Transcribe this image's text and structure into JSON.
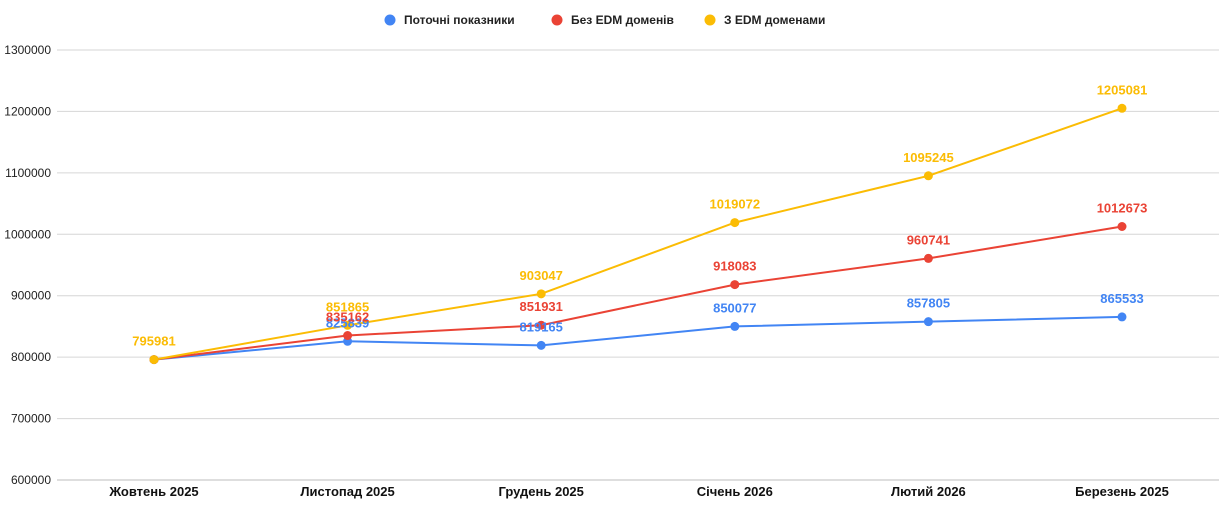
{
  "chart_data": {
    "type": "line",
    "categories": [
      "Жовтень 2025",
      "Листопад 2025",
      "Грудень 2025",
      "Січень 2026",
      "Лютий 2026",
      "Березень 2025"
    ],
    "series": [
      {
        "name": "Поточні показники",
        "color": "#4285F4",
        "values": [
          795981,
          825839,
          819165,
          850077,
          857805,
          865533
        ],
        "labels": [
          "",
          "825839",
          "819165",
          "850077",
          "857805",
          "865533"
        ]
      },
      {
        "name": "Без EDM доменів",
        "color": "#EA4335",
        "values": [
          795981,
          835162,
          851931,
          918083,
          960741,
          1012673
        ],
        "labels": [
          "",
          "835162",
          "851931",
          "918083",
          "960741",
          "1012673"
        ]
      },
      {
        "name": "З EDM доменами",
        "color": "#FBBC04",
        "values": [
          795981,
          851865,
          903047,
          1019072,
          1095245,
          1205081
        ],
        "labels": [
          "795981",
          "851865",
          "903047",
          "1019072",
          "1095245",
          "1205081"
        ]
      }
    ],
    "y_ticks": [
      "600000",
      "700000",
      "800000",
      "900000",
      "1000000",
      "1100000",
      "1200000",
      "1300000"
    ],
    "ylim": [
      600000,
      1300000
    ],
    "grid": true,
    "legend_position": "top-center"
  }
}
